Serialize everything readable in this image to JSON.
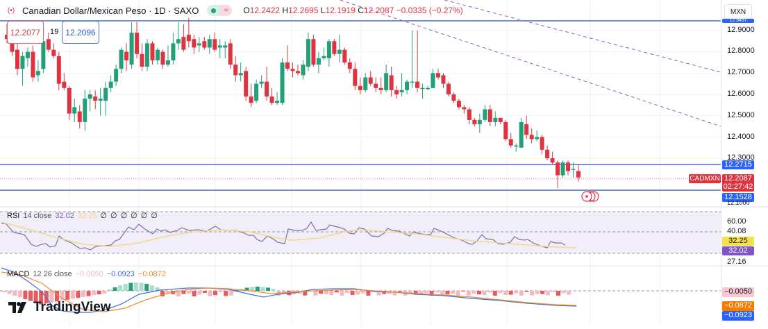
{
  "header": {
    "title": "Canadian Dollar/Mexican Peso · 1D · SAXO",
    "symbol_icon": "cad-mxn-flag-icon",
    "market_status_icon": "market-open-dot-icon",
    "data_delay_icon": "approx-icon",
    "ohlc": {
      "o_label": "O",
      "o": "12.2422",
      "h_label": "H",
      "h": "12.2695",
      "l_label": "L",
      "l": "12.1919",
      "c_label": "C",
      "c": "12.2087",
      "change": "−0.0335 (−0.27%)"
    }
  },
  "trade": {
    "sell_price": "12.2077",
    "spread": "19",
    "buy_price": "12.2096"
  },
  "currency_selector": {
    "value": "MXN"
  },
  "price_axis": {
    "labels": [
      "12.9000",
      "12.8000",
      "12.7000",
      "12.6000",
      "12.5000",
      "12.4000",
      "12.3000"
    ],
    "top_line_tag": "12.9497",
    "upper_level_tag": "12.2715",
    "symbol_tag": "CADMXN",
    "last_price_tag": "12.2087",
    "countdown": "02:27:42",
    "lower_level_tag": "12.1528",
    "bottom_partial": "12.1000"
  },
  "rsi": {
    "legend_name": "RSI",
    "legend_params": "14 close",
    "value": "32.02",
    "ma_value": "32.25",
    "empty_values": [
      "∅",
      "∅",
      "∅",
      "∅",
      "∅",
      "∅"
    ],
    "axis_labels": [
      "60.00",
      "40.08"
    ],
    "ma_tag": "32.25",
    "rsi_tag": "32.02",
    "bottom_label": "27.16"
  },
  "macd": {
    "legend_name": "MACD",
    "legend_params": "12 26 close",
    "histogram_value": "−0.0050",
    "macd_value": "−0.0923",
    "signal_value": "−0.0872",
    "hist_tag": "−0.0050",
    "signal_tag": "−0.0872",
    "macd_tag": "−0.0923"
  },
  "branding": {
    "logo_text": "TradingView"
  },
  "colors": {
    "up": "#22a07a",
    "down": "#e03340",
    "level_line": "#4a6fc4",
    "trendline": "#9c5bb8",
    "rsi_line": "#7e6fa8",
    "rsi_ma": "#f2d88a",
    "rsi_bg": "#f1eefa",
    "macd_line": "#3d6fd8",
    "signal_line": "#f08a2c"
  },
  "chart_data": {
    "type": "candlestick",
    "title": "Canadian Dollar/Mexican Peso · 1D · SAXO",
    "xlabel": "",
    "ylabel": "MXN",
    "ylim": [
      12.1,
      12.95
    ],
    "horizontal_levels": [
      12.9497,
      12.2715,
      12.1528
    ],
    "last_price": 12.2087,
    "candles": [
      {
        "o": 12.88,
        "h": 12.93,
        "l": 12.84,
        "c": 12.86
      },
      {
        "o": 12.86,
        "h": 12.9,
        "l": 12.78,
        "c": 12.8
      },
      {
        "o": 12.81,
        "h": 12.84,
        "l": 12.69,
        "c": 12.72
      },
      {
        "o": 12.72,
        "h": 12.8,
        "l": 12.64,
        "c": 12.78
      },
      {
        "o": 12.77,
        "h": 12.82,
        "l": 12.73,
        "c": 12.8
      },
      {
        "o": 12.8,
        "h": 12.83,
        "l": 12.66,
        "c": 12.68
      },
      {
        "o": 12.69,
        "h": 12.76,
        "l": 12.66,
        "c": 12.71
      },
      {
        "o": 12.72,
        "h": 12.87,
        "l": 12.7,
        "c": 12.85
      },
      {
        "o": 12.86,
        "h": 12.89,
        "l": 12.8,
        "c": 12.81
      },
      {
        "o": 12.81,
        "h": 12.84,
        "l": 12.77,
        "c": 12.78
      },
      {
        "o": 12.78,
        "h": 12.8,
        "l": 12.62,
        "c": 12.65
      },
      {
        "o": 12.66,
        "h": 12.7,
        "l": 12.62,
        "c": 12.63
      },
      {
        "o": 12.63,
        "h": 12.64,
        "l": 12.48,
        "c": 12.51
      },
      {
        "o": 12.51,
        "h": 12.58,
        "l": 12.47,
        "c": 12.54
      },
      {
        "o": 12.52,
        "h": 12.55,
        "l": 12.44,
        "c": 12.47
      },
      {
        "o": 12.47,
        "h": 12.62,
        "l": 12.43,
        "c": 12.58
      },
      {
        "o": 12.58,
        "h": 12.62,
        "l": 12.52,
        "c": 12.6
      },
      {
        "o": 12.59,
        "h": 12.62,
        "l": 12.53,
        "c": 12.57
      },
      {
        "o": 12.57,
        "h": 12.63,
        "l": 12.5,
        "c": 12.58
      },
      {
        "o": 12.57,
        "h": 12.66,
        "l": 12.5,
        "c": 12.63
      },
      {
        "o": 12.63,
        "h": 12.69,
        "l": 12.61,
        "c": 12.66
      },
      {
        "o": 12.66,
        "h": 12.74,
        "l": 12.64,
        "c": 12.72
      },
      {
        "o": 12.72,
        "h": 12.82,
        "l": 12.7,
        "c": 12.81
      },
      {
        "o": 12.8,
        "h": 12.84,
        "l": 12.71,
        "c": 12.76
      },
      {
        "o": 12.74,
        "h": 12.94,
        "l": 12.72,
        "c": 12.89
      },
      {
        "o": 12.89,
        "h": 12.94,
        "l": 12.77,
        "c": 12.79
      },
      {
        "o": 12.79,
        "h": 12.84,
        "l": 12.71,
        "c": 12.73
      },
      {
        "o": 12.73,
        "h": 12.86,
        "l": 12.71,
        "c": 12.84
      },
      {
        "o": 12.84,
        "h": 12.85,
        "l": 12.74,
        "c": 12.76
      },
      {
        "o": 12.76,
        "h": 12.82,
        "l": 12.74,
        "c": 12.81
      },
      {
        "o": 12.8,
        "h": 12.81,
        "l": 12.72,
        "c": 12.74
      },
      {
        "o": 12.74,
        "h": 12.83,
        "l": 12.73,
        "c": 12.76
      },
      {
        "o": 12.76,
        "h": 12.89,
        "l": 12.74,
        "c": 12.84
      },
      {
        "o": 12.84,
        "h": 12.94,
        "l": 12.81,
        "c": 12.86
      },
      {
        "o": 12.87,
        "h": 12.93,
        "l": 12.8,
        "c": 12.81
      },
      {
        "o": 12.88,
        "h": 12.96,
        "l": 12.82,
        "c": 12.85
      },
      {
        "o": 12.86,
        "h": 12.88,
        "l": 12.79,
        "c": 12.82
      },
      {
        "o": 12.83,
        "h": 12.87,
        "l": 12.8,
        "c": 12.84
      },
      {
        "o": 12.85,
        "h": 12.87,
        "l": 12.81,
        "c": 12.82
      },
      {
        "o": 12.82,
        "h": 12.88,
        "l": 12.79,
        "c": 12.86
      },
      {
        "o": 12.86,
        "h": 12.89,
        "l": 12.8,
        "c": 12.81
      },
      {
        "o": 12.82,
        "h": 12.86,
        "l": 12.77,
        "c": 12.83
      },
      {
        "o": 12.82,
        "h": 12.85,
        "l": 12.77,
        "c": 12.83
      },
      {
        "o": 12.84,
        "h": 12.86,
        "l": 12.72,
        "c": 12.74
      },
      {
        "o": 12.74,
        "h": 12.78,
        "l": 12.66,
        "c": 12.69
      },
      {
        "o": 12.69,
        "h": 12.75,
        "l": 12.66,
        "c": 12.7
      },
      {
        "o": 12.71,
        "h": 12.73,
        "l": 12.57,
        "c": 12.59
      },
      {
        "o": 12.59,
        "h": 12.65,
        "l": 12.54,
        "c": 12.56
      },
      {
        "o": 12.57,
        "h": 12.67,
        "l": 12.56,
        "c": 12.65
      },
      {
        "o": 12.65,
        "h": 12.69,
        "l": 12.63,
        "c": 12.66
      },
      {
        "o": 12.66,
        "h": 12.73,
        "l": 12.57,
        "c": 12.59
      },
      {
        "o": 12.59,
        "h": 12.63,
        "l": 12.55,
        "c": 12.56
      },
      {
        "o": 12.56,
        "h": 12.61,
        "l": 12.55,
        "c": 12.57
      },
      {
        "o": 12.56,
        "h": 12.77,
        "l": 12.55,
        "c": 12.75
      },
      {
        "o": 12.75,
        "h": 12.83,
        "l": 12.71,
        "c": 12.72
      },
      {
        "o": 12.72,
        "h": 12.75,
        "l": 12.68,
        "c": 12.71
      },
      {
        "o": 12.71,
        "h": 12.74,
        "l": 12.69,
        "c": 12.7
      },
      {
        "o": 12.69,
        "h": 12.76,
        "l": 12.67,
        "c": 12.74
      },
      {
        "o": 12.73,
        "h": 12.89,
        "l": 12.71,
        "c": 12.86
      },
      {
        "o": 12.86,
        "h": 12.88,
        "l": 12.73,
        "c": 12.74
      },
      {
        "o": 12.74,
        "h": 12.8,
        "l": 12.7,
        "c": 12.77
      },
      {
        "o": 12.77,
        "h": 12.82,
        "l": 12.76,
        "c": 12.78
      },
      {
        "o": 12.77,
        "h": 12.86,
        "l": 12.73,
        "c": 12.85
      },
      {
        "o": 12.85,
        "h": 12.86,
        "l": 12.78,
        "c": 12.79
      },
      {
        "o": 12.79,
        "h": 12.88,
        "l": 12.75,
        "c": 12.81
      },
      {
        "o": 12.81,
        "h": 12.82,
        "l": 12.74,
        "c": 12.75
      },
      {
        "o": 12.75,
        "h": 12.77,
        "l": 12.7,
        "c": 12.72
      },
      {
        "o": 12.72,
        "h": 12.75,
        "l": 12.62,
        "c": 12.64
      },
      {
        "o": 12.64,
        "h": 12.68,
        "l": 12.6,
        "c": 12.62
      },
      {
        "o": 12.62,
        "h": 12.7,
        "l": 12.61,
        "c": 12.68
      },
      {
        "o": 12.68,
        "h": 12.71,
        "l": 12.64,
        "c": 12.65
      },
      {
        "o": 12.65,
        "h": 12.68,
        "l": 12.61,
        "c": 12.63
      },
      {
        "o": 12.63,
        "h": 12.68,
        "l": 12.6,
        "c": 12.62
      },
      {
        "o": 12.62,
        "h": 12.74,
        "l": 12.61,
        "c": 12.7
      },
      {
        "o": 12.69,
        "h": 12.73,
        "l": 12.59,
        "c": 12.62
      },
      {
        "o": 12.62,
        "h": 12.64,
        "l": 12.58,
        "c": 12.6
      },
      {
        "o": 12.61,
        "h": 12.7,
        "l": 12.59,
        "c": 12.62
      },
      {
        "o": 12.62,
        "h": 12.67,
        "l": 12.6,
        "c": 12.66
      },
      {
        "o": 12.66,
        "h": 12.9,
        "l": 12.63,
        "c": 12.66
      },
      {
        "o": 12.66,
        "h": 12.9,
        "l": 12.61,
        "c": 12.63
      },
      {
        "o": 12.63,
        "h": 12.65,
        "l": 12.58,
        "c": 12.63
      },
      {
        "o": 12.63,
        "h": 12.64,
        "l": 12.62,
        "c": 12.63
      },
      {
        "o": 12.63,
        "h": 12.72,
        "l": 12.63,
        "c": 12.7
      },
      {
        "o": 12.7,
        "h": 12.72,
        "l": 12.67,
        "c": 12.68
      },
      {
        "o": 12.69,
        "h": 12.7,
        "l": 12.63,
        "c": 12.65
      },
      {
        "o": 12.65,
        "h": 12.66,
        "l": 12.59,
        "c": 12.6
      },
      {
        "o": 12.6,
        "h": 12.61,
        "l": 12.56,
        "c": 12.57
      },
      {
        "o": 12.57,
        "h": 12.58,
        "l": 12.53,
        "c": 12.54
      },
      {
        "o": 12.54,
        "h": 12.55,
        "l": 12.51,
        "c": 12.53
      },
      {
        "o": 12.53,
        "h": 12.54,
        "l": 12.46,
        "c": 12.48
      },
      {
        "o": 12.48,
        "h": 12.49,
        "l": 12.45,
        "c": 12.46
      },
      {
        "o": 12.46,
        "h": 12.51,
        "l": 12.42,
        "c": 12.48
      },
      {
        "o": 12.48,
        "h": 12.55,
        "l": 12.47,
        "c": 12.53
      },
      {
        "o": 12.53,
        "h": 12.55,
        "l": 12.45,
        "c": 12.47
      },
      {
        "o": 12.47,
        "h": 12.52,
        "l": 12.45,
        "c": 12.49
      },
      {
        "o": 12.49,
        "h": 12.49,
        "l": 12.46,
        "c": 12.47
      },
      {
        "o": 12.47,
        "h": 12.48,
        "l": 12.38,
        "c": 12.39
      },
      {
        "o": 12.39,
        "h": 12.42,
        "l": 12.35,
        "c": 12.36
      },
      {
        "o": 12.36,
        "h": 12.37,
        "l": 12.33,
        "c": 12.36
      },
      {
        "o": 12.35,
        "h": 12.49,
        "l": 12.35,
        "c": 12.47
      },
      {
        "o": 12.46,
        "h": 12.5,
        "l": 12.39,
        "c": 12.41
      },
      {
        "o": 12.41,
        "h": 12.44,
        "l": 12.37,
        "c": 12.39
      },
      {
        "o": 12.39,
        "h": 12.43,
        "l": 12.38,
        "c": 12.4
      },
      {
        "o": 12.4,
        "h": 12.41,
        "l": 12.32,
        "c": 12.34
      },
      {
        "o": 12.34,
        "h": 12.36,
        "l": 12.29,
        "c": 12.3
      },
      {
        "o": 12.3,
        "h": 12.33,
        "l": 12.27,
        "c": 12.28
      },
      {
        "o": 12.28,
        "h": 12.29,
        "l": 12.16,
        "c": 12.22
      },
      {
        "o": 12.22,
        "h": 12.29,
        "l": 12.21,
        "c": 12.28
      },
      {
        "o": 12.28,
        "h": 12.29,
        "l": 12.22,
        "c": 12.24
      },
      {
        "o": 12.25,
        "h": 12.28,
        "l": 12.21,
        "c": 12.25
      },
      {
        "o": 12.24,
        "h": 12.27,
        "l": 12.19,
        "c": 12.21
      }
    ],
    "indicators": {
      "rsi": {
        "period": 14,
        "source": "close",
        "value": 32.02,
        "ma": 32.25,
        "bands": [
          60.0,
          40.08
        ],
        "ylim": [
          27.16,
          70
        ]
      },
      "macd": {
        "fast": 12,
        "slow": 26,
        "source": "close",
        "histogram": -0.005,
        "macd": -0.0923,
        "signal": -0.0872
      }
    }
  }
}
